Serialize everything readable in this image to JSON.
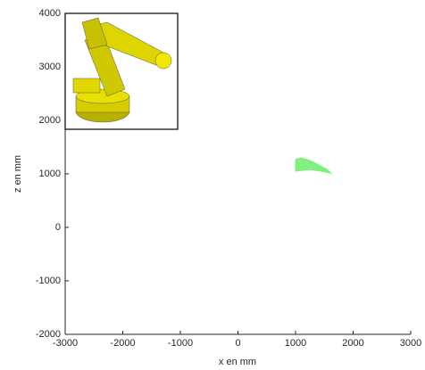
{
  "chart_data": {
    "type": "area",
    "x_label": "x en mm",
    "y_label": "z en mm",
    "xlim": [
      -3000,
      3000
    ],
    "ylim": [
      -2000,
      4000
    ],
    "xticks": [
      -3000,
      -2000,
      -1000,
      0,
      1000,
      2000,
      3000
    ],
    "yticks": [
      -2000,
      -1000,
      0,
      1000,
      2000,
      3000,
      4000
    ],
    "series": [
      {
        "color": "#80f080",
        "x": [
          1000,
          1000,
          1100,
          1250,
          1400,
          1550,
          1620,
          1450,
          1250,
          1000
        ],
        "values": [
          1050,
          1270,
          1300,
          1250,
          1170,
          1080,
          1010,
          1050,
          1080,
          1050
        ]
      }
    ]
  }
}
